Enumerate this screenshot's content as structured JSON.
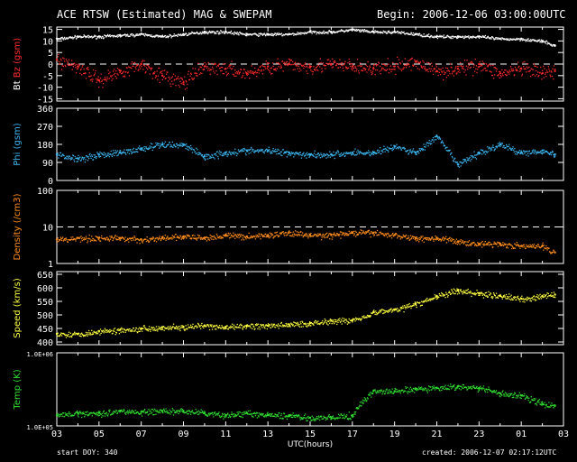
{
  "header": {
    "title": "ACE RTSW (Estimated) MAG & SWEPAM",
    "begin": "Begin: 2006-12-06 03:00:00UTC"
  },
  "footer": {
    "start_doy": "start DOY: 340",
    "created": "created: 2006-12-07 02:17:12UTC"
  },
  "chart_data": [
    {
      "type": "scatter",
      "panel": "mag",
      "ylabel_parts": [
        {
          "text": "Bt",
          "color": "#ffffff"
        },
        {
          "text": "Bz",
          "color": "#ff2a2a"
        },
        {
          "text": "(gsm)",
          "color": "#ff2a2a"
        }
      ],
      "yticks": [
        "15",
        "10",
        "5",
        "0",
        "-5",
        "-10",
        "-15"
      ],
      "ylim": [
        -16,
        16
      ],
      "ref_line": 0,
      "series": [
        {
          "name": "Bt",
          "color": "#ffffff",
          "x": [
            0,
            1,
            2,
            3,
            4,
            5,
            6,
            7,
            8,
            9,
            10,
            11,
            12,
            13,
            14,
            15,
            16,
            17,
            18,
            19,
            20,
            21,
            22,
            23,
            23.6
          ],
          "y": [
            11,
            12,
            12,
            12.5,
            13,
            12,
            13,
            14,
            14,
            13,
            13,
            13,
            14,
            14,
            15,
            14,
            14,
            13,
            12,
            12,
            12,
            11,
            11,
            10,
            8
          ]
        },
        {
          "name": "Bz",
          "color": "#ff2a2a",
          "x": [
            0,
            1,
            2,
            3,
            4,
            5,
            6,
            7,
            8,
            9,
            10,
            11,
            12,
            13,
            14,
            15,
            16,
            17,
            18,
            19,
            20,
            21,
            22,
            23,
            23.6
          ],
          "y": [
            2,
            -1,
            -7,
            -3,
            0,
            -5,
            -8,
            -1,
            -2,
            -4,
            -1,
            0,
            -1,
            0,
            -1,
            -2,
            -1,
            1,
            -3,
            -2,
            0,
            -4,
            -2,
            -4,
            -3
          ]
        }
      ]
    },
    {
      "type": "scatter",
      "panel": "phi",
      "ylabel_parts": [
        {
          "text": "Phi (gsm)",
          "color": "#3ab6f0"
        }
      ],
      "yticks": [
        "360",
        "270",
        "180",
        "90",
        "0"
      ],
      "ylim": [
        0,
        360
      ],
      "series": [
        {
          "name": "Phi",
          "color": "#3ab6f0",
          "x": [
            0,
            1,
            2,
            3,
            4,
            5,
            6,
            7,
            8,
            9,
            10,
            11,
            12,
            13,
            14,
            15,
            16,
            17,
            18,
            19,
            20,
            21,
            22,
            23,
            23.6
          ],
          "y": [
            130,
            110,
            130,
            140,
            160,
            180,
            180,
            120,
            140,
            150,
            150,
            140,
            130,
            130,
            140,
            140,
            170,
            140,
            220,
            80,
            140,
            180,
            140,
            150,
            130
          ]
        }
      ]
    },
    {
      "type": "scatter",
      "panel": "density",
      "scale": "log",
      "ylabel_parts": [
        {
          "text": "Density (/cm3)",
          "color": "#ff8c1a"
        }
      ],
      "yticks": [
        "100",
        "10",
        "1"
      ],
      "ylim": [
        1,
        100
      ],
      "ref_line": 10,
      "series": [
        {
          "name": "Density",
          "color": "#ff8c1a",
          "x": [
            0,
            1,
            2,
            3,
            4,
            5,
            6,
            7,
            8,
            9,
            10,
            11,
            12,
            13,
            14,
            15,
            16,
            17,
            18,
            19,
            20,
            21,
            22,
            23,
            23.6
          ],
          "y": [
            4.5,
            5,
            5,
            5,
            4.5,
            5,
            5.5,
            5,
            6,
            5.5,
            6,
            7,
            6,
            6,
            7,
            7,
            6,
            5,
            5,
            4,
            3.5,
            3.5,
            3,
            3,
            2
          ]
        }
      ]
    },
    {
      "type": "scatter",
      "panel": "speed",
      "ylabel_parts": [
        {
          "text": "Speed (km/s)",
          "color": "#ffff40"
        }
      ],
      "yticks": [
        "650",
        "600",
        "550",
        "500",
        "450",
        "400"
      ],
      "ylim": [
        390,
        660
      ],
      "series": [
        {
          "name": "Speed",
          "color": "#ffff40",
          "x": [
            0,
            1,
            2,
            3,
            4,
            5,
            6,
            7,
            8,
            9,
            10,
            11,
            12,
            13,
            14,
            15,
            16,
            17,
            18,
            19,
            20,
            21,
            22,
            23,
            23.6
          ],
          "y": [
            430,
            430,
            440,
            445,
            450,
            455,
            455,
            460,
            455,
            460,
            460,
            465,
            470,
            480,
            480,
            510,
            520,
            540,
            570,
            590,
            580,
            570,
            560,
            570,
            575
          ]
        }
      ]
    },
    {
      "type": "scatter",
      "panel": "temp",
      "scale": "log",
      "ylabel_parts": [
        {
          "text": "Temp (K)",
          "color": "#30e030"
        }
      ],
      "yticks": [
        "1.0E+06",
        "1.0E+05"
      ],
      "ylim": [
        100000,
        1000000
      ],
      "series": [
        {
          "name": "Temp",
          "color": "#30e030",
          "x": [
            0,
            1,
            2,
            3,
            4,
            5,
            6,
            7,
            8,
            9,
            10,
            11,
            12,
            13,
            14,
            15,
            16,
            17,
            18,
            19,
            20,
            21,
            22,
            23,
            23.6
          ],
          "y": [
            140000,
            150000,
            150000,
            160000,
            155000,
            160000,
            160000,
            150000,
            140000,
            150000,
            140000,
            140000,
            130000,
            130000,
            140000,
            300000,
            300000,
            320000,
            330000,
            350000,
            330000,
            280000,
            260000,
            200000,
            190000
          ]
        }
      ]
    }
  ],
  "xaxis": {
    "label": "UTC(hours)",
    "ticks": [
      "03",
      "05",
      "07",
      "09",
      "11",
      "13",
      "15",
      "17",
      "19",
      "21",
      "23",
      "01",
      "03"
    ]
  }
}
